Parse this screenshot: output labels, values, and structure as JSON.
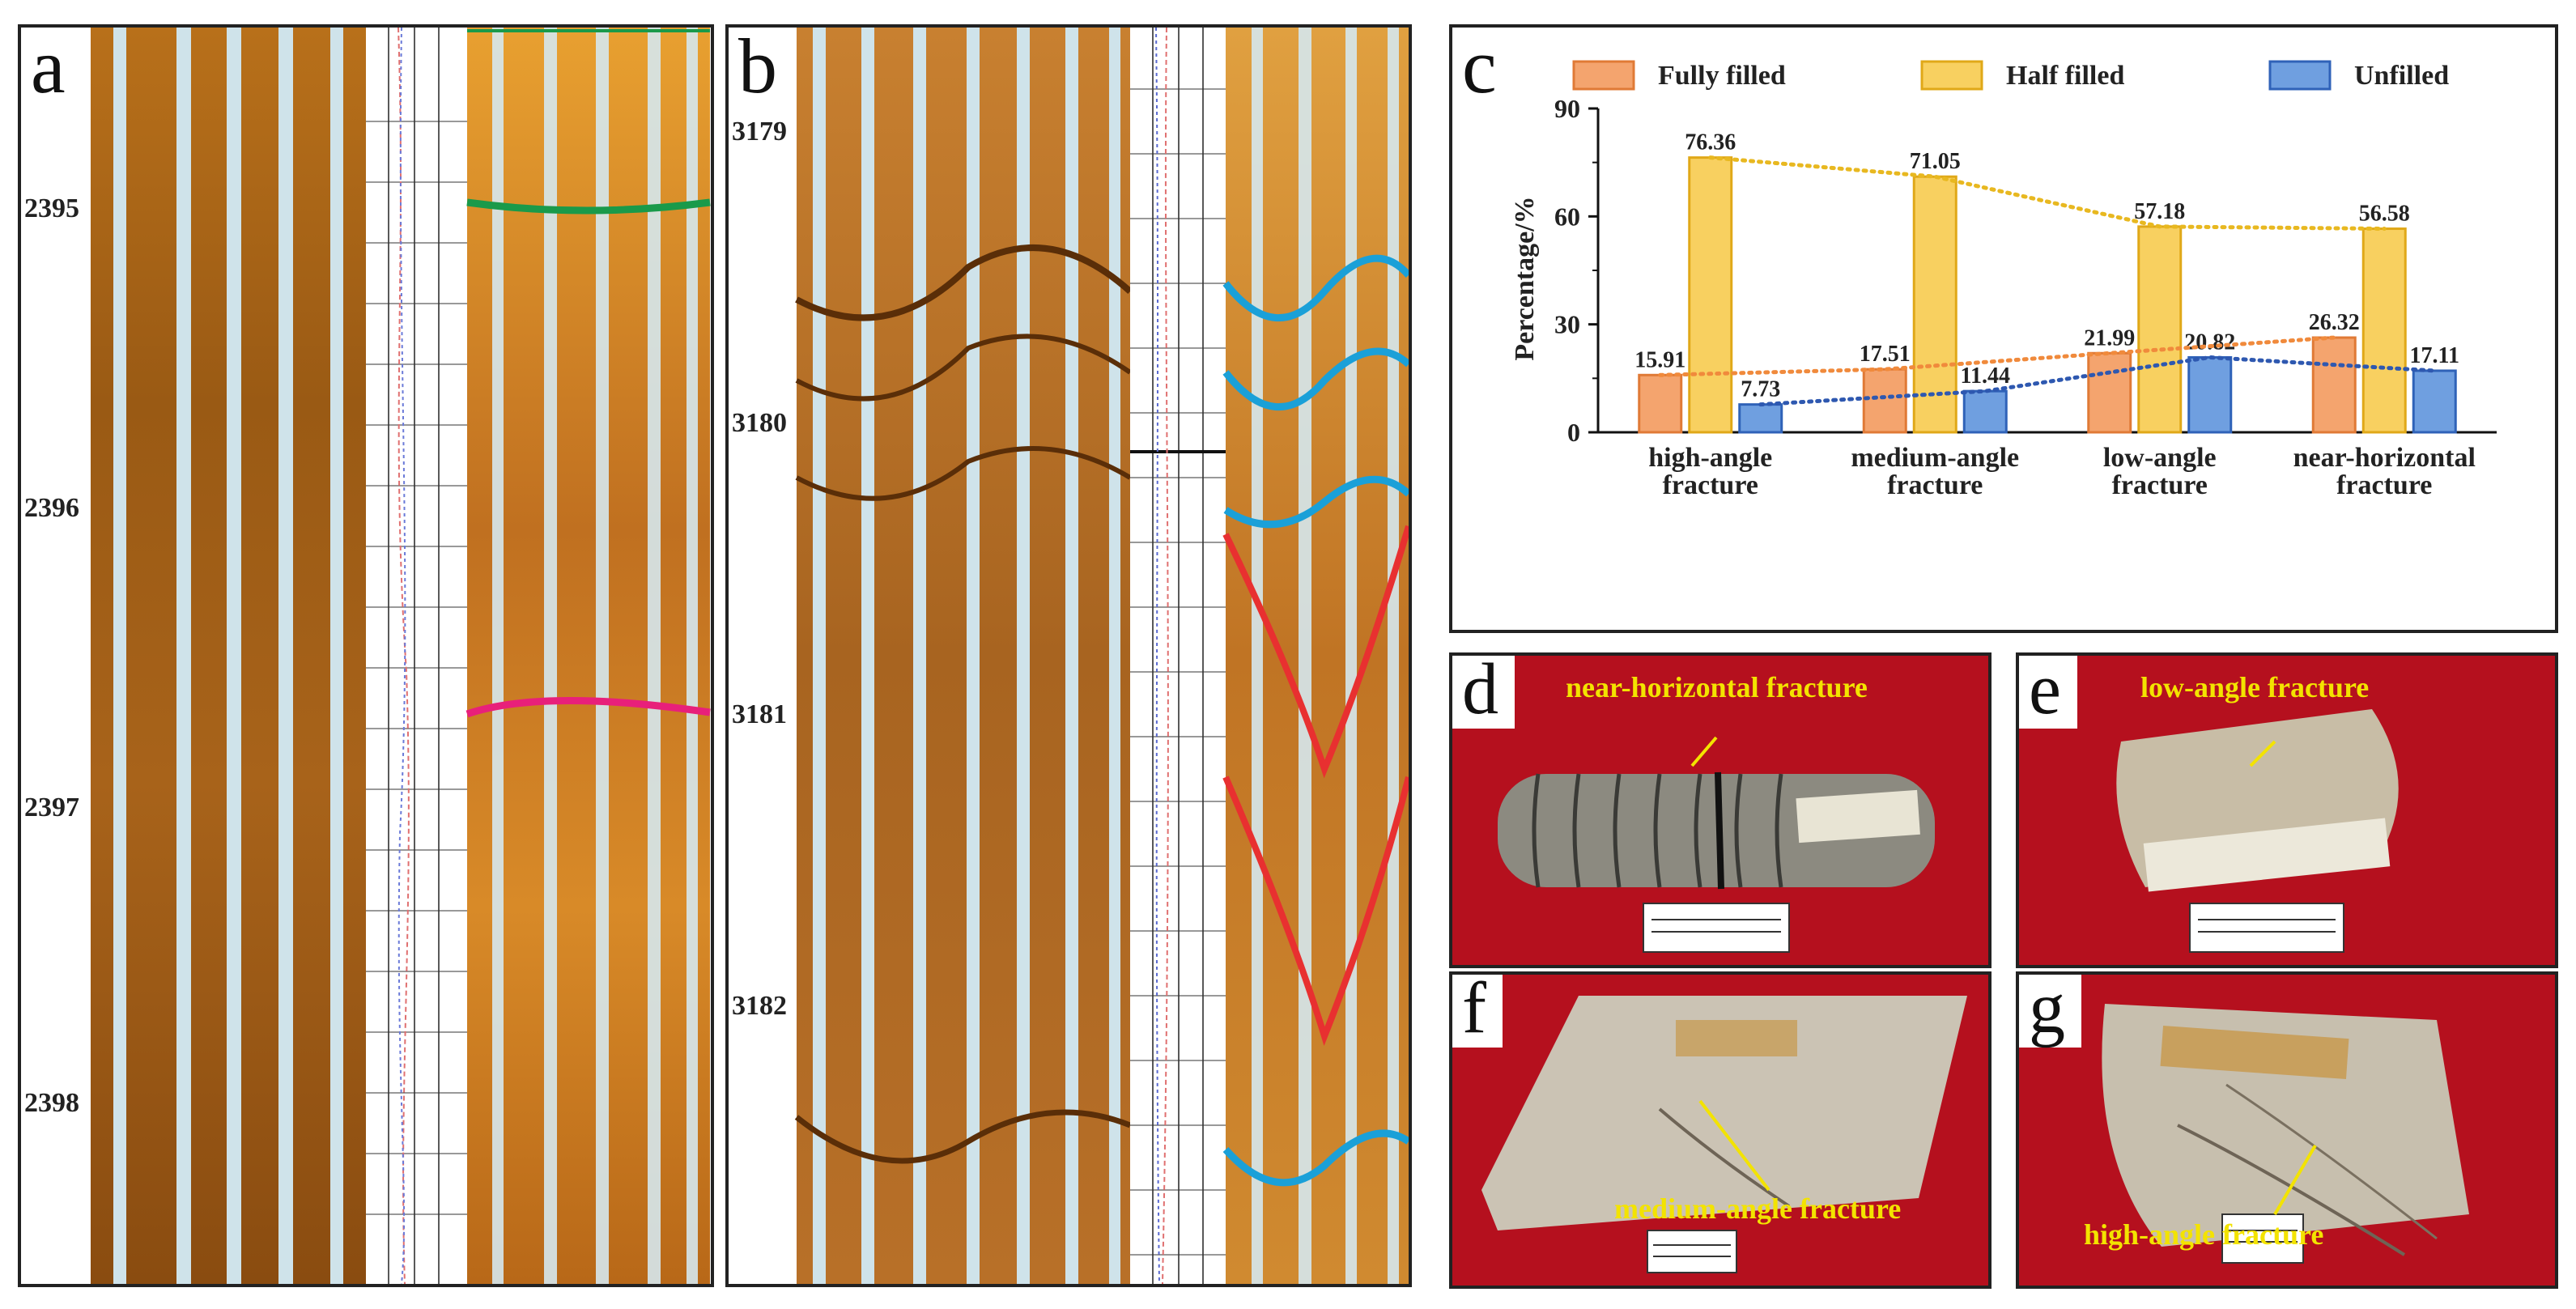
{
  "panels": {
    "a": {
      "letter": "a",
      "depths": [
        "2395",
        "2396",
        "2397",
        "2398"
      ]
    },
    "b": {
      "letter": "b",
      "depths": [
        "3179",
        "3180",
        "3181",
        "3182"
      ]
    },
    "c": {
      "letter": "c"
    },
    "d": {
      "letter": "d",
      "label": "near-horizontal fracture"
    },
    "e": {
      "letter": "e",
      "label": "low-angle fracture"
    },
    "f": {
      "letter": "f",
      "label": "medium-angle fracture"
    },
    "g": {
      "letter": "g",
      "label": "high-angle fracture"
    }
  },
  "chart_data": {
    "type": "bar",
    "ylabel": "Percentage/%",
    "ylim": [
      0,
      90
    ],
    "yticks": [
      0,
      30,
      60,
      90
    ],
    "legend_position": "top",
    "categories": [
      [
        "high-angle",
        "fracture"
      ],
      [
        "medium-angle",
        "fracture"
      ],
      [
        "low-angle",
        "fracture"
      ],
      [
        "near-horizontal",
        "fracture"
      ]
    ],
    "series": [
      {
        "name": "Fully filled",
        "values": [
          15.91,
          17.51,
          21.99,
          26.32
        ],
        "color": "#f4a46e",
        "edge": "#e07a36",
        "trend": "#f08a3c"
      },
      {
        "name": "Half filled",
        "values": [
          76.36,
          71.05,
          57.18,
          56.58
        ],
        "color": "#f8d060",
        "edge": "#e0a818",
        "trend": "#e8b820"
      },
      {
        "name": "Unfilled",
        "values": [
          7.73,
          11.44,
          20.82,
          17.11
        ],
        "color": "#6f9fe0",
        "edge": "#2f62b8",
        "trend": "#2e58b0"
      }
    ],
    "labels_display": [
      [
        "15.91",
        "17.51",
        "21.99",
        "26.32"
      ],
      [
        "76.36",
        "71.05",
        "57.18",
        "56.58"
      ],
      [
        "7.73",
        "11.44",
        "20.82",
        "17.11"
      ]
    ]
  }
}
